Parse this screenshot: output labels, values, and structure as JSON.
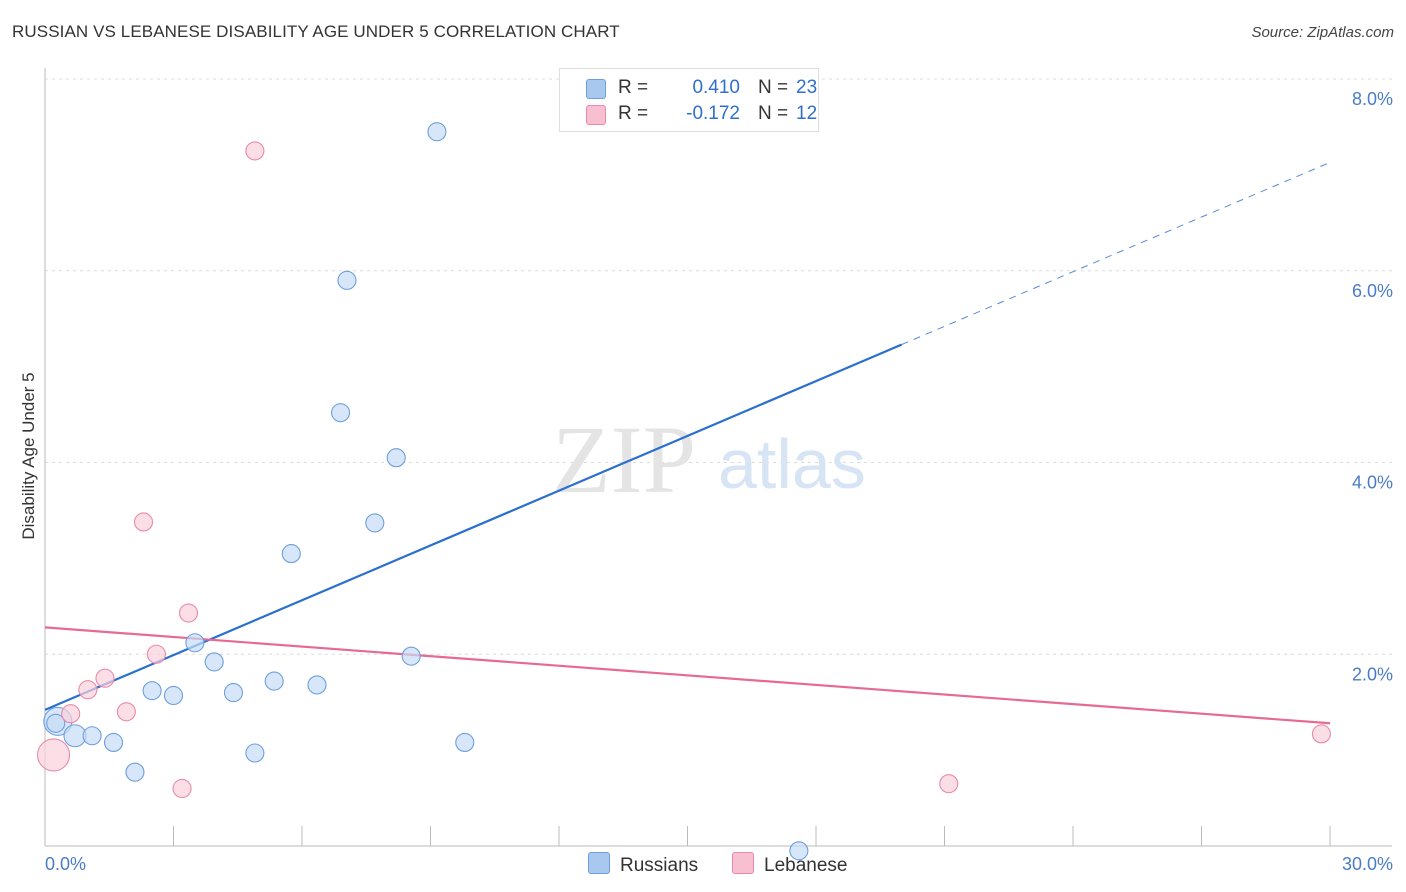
{
  "title": "RUSSIAN VS LEBANESE DISABILITY AGE UNDER 5 CORRELATION CHART",
  "source": "Source: ZipAtlas.com",
  "watermark": {
    "zip": "ZIP",
    "atlas": "atlas"
  },
  "legend": {
    "rows": [
      {
        "r_label": "R =",
        "r_value": "0.410",
        "n_label": "N =",
        "n_value": "23",
        "color": "#a9c8f0",
        "border": "#6e9fdc"
      },
      {
        "r_label": "R =",
        "r_value": "-0.172",
        "n_label": "N =",
        "n_value": "12",
        "color": "#f7bfcf",
        "border": "#ea8aa8"
      }
    ]
  },
  "bottom_legend": {
    "russians": "Russians",
    "lebanese": "Lebanese"
  },
  "chart_data": {
    "type": "scatter",
    "title": "RUSSIAN VS LEBANESE DISABILITY AGE UNDER 5 CORRELATION CHART",
    "xlabel": "",
    "ylabel": "Disability Age Under 5",
    "xlim": [
      0,
      30
    ],
    "ylim": [
      0,
      8
    ],
    "x_tick_labels": [
      {
        "value": 0,
        "label": "0.0%"
      },
      {
        "value": 30,
        "label": "30.0%"
      }
    ],
    "y_tick_labels": [
      {
        "value": 2,
        "label": "2.0%"
      },
      {
        "value": 4,
        "label": "4.0%"
      },
      {
        "value": 6,
        "label": "6.0%"
      },
      {
        "value": 8,
        "label": "8.0%"
      }
    ],
    "grid": true,
    "series": [
      {
        "name": "Russians",
        "color": "#6e9fdc",
        "fill": "#c6dbf5",
        "trend_color": "#2b6fcf",
        "points": [
          {
            "x": 0.3,
            "y": 1.3,
            "size": 14
          },
          {
            "x": 0.7,
            "y": 1.15,
            "size": 11
          },
          {
            "x": 1.1,
            "y": 1.15,
            "size": 9
          },
          {
            "x": 1.6,
            "y": 1.08,
            "size": 9
          },
          {
            "x": 2.1,
            "y": 0.77,
            "size": 9
          },
          {
            "x": 2.5,
            "y": 1.62,
            "size": 9
          },
          {
            "x": 3.0,
            "y": 1.57,
            "size": 9
          },
          {
            "x": 3.5,
            "y": 2.12,
            "size": 9
          },
          {
            "x": 3.95,
            "y": 1.92,
            "size": 9
          },
          {
            "x": 4.4,
            "y": 1.6,
            "size": 9
          },
          {
            "x": 4.9,
            "y": 0.97,
            "size": 9
          },
          {
            "x": 5.35,
            "y": 1.72,
            "size": 9
          },
          {
            "x": 5.75,
            "y": 3.05,
            "size": 9
          },
          {
            "x": 6.35,
            "y": 1.68,
            "size": 9
          },
          {
            "x": 6.9,
            "y": 4.52,
            "size": 9
          },
          {
            "x": 7.05,
            "y": 5.9,
            "size": 9
          },
          {
            "x": 7.7,
            "y": 3.37,
            "size": 9
          },
          {
            "x": 8.2,
            "y": 4.05,
            "size": 9
          },
          {
            "x": 8.55,
            "y": 1.98,
            "size": 9
          },
          {
            "x": 9.15,
            "y": 7.45,
            "size": 9
          },
          {
            "x": 9.8,
            "y": 1.08,
            "size": 9
          },
          {
            "x": 17.6,
            "y": -0.05,
            "size": 9
          },
          {
            "x": 0.25,
            "y": 1.28,
            "size": 9
          }
        ],
        "trend": {
          "x0": 0,
          "y0": 1.42,
          "x1": 20.0,
          "y1": 5.23,
          "dash_to_x": 30,
          "dash_to_y": 7.13
        }
      },
      {
        "name": "Lebanese",
        "color": "#ea8aa8",
        "fill": "#f9d0dc",
        "trend_color": "#e56b93",
        "points": [
          {
            "x": 0.2,
            "y": 0.95,
            "size": 16
          },
          {
            "x": 0.6,
            "y": 1.38,
            "size": 9
          },
          {
            "x": 1.0,
            "y": 1.63,
            "size": 9
          },
          {
            "x": 1.4,
            "y": 1.75,
            "size": 9
          },
          {
            "x": 1.9,
            "y": 1.4,
            "size": 9
          },
          {
            "x": 2.3,
            "y": 3.38,
            "size": 9
          },
          {
            "x": 2.6,
            "y": 2.0,
            "size": 9
          },
          {
            "x": 3.2,
            "y": 0.6,
            "size": 9
          },
          {
            "x": 3.35,
            "y": 2.43,
            "size": 9
          },
          {
            "x": 4.9,
            "y": 7.25,
            "size": 9
          },
          {
            "x": 21.1,
            "y": 0.65,
            "size": 9
          },
          {
            "x": 29.8,
            "y": 1.17,
            "size": 9
          }
        ],
        "trend": {
          "x0": 0,
          "y0": 2.28,
          "x1": 30,
          "y1": 1.28
        }
      }
    ]
  }
}
